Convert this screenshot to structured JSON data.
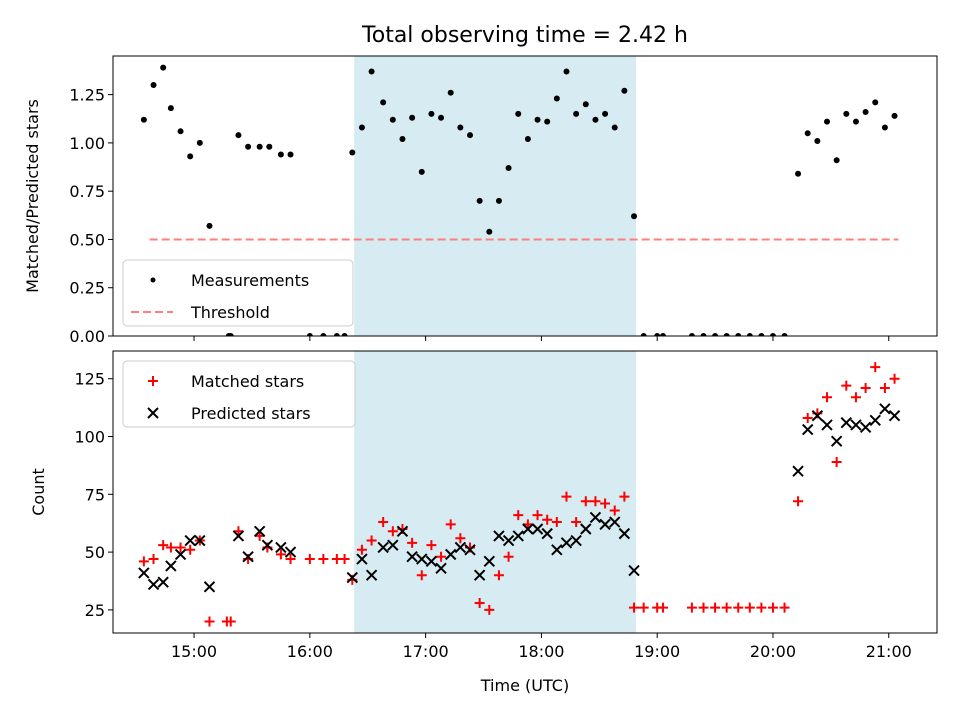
{
  "figure": {
    "title": "Total observing time = 2.42 h",
    "shaded_region": {
      "start": "16:23",
      "end": "18:49",
      "color": "#add8e6"
    }
  },
  "chart_data": [
    {
      "type": "scatter",
      "xlabel": "",
      "ylabel": "Matched/Predicted stars",
      "ylim": [
        0,
        1.45
      ],
      "xlim": [
        "14:18",
        "21:25"
      ],
      "yticks": [
        "0.00",
        "0.25",
        "0.50",
        "0.75",
        "1.00",
        "1.25"
      ],
      "xtick_labels_visible": false,
      "legend": {
        "position": "lower-left",
        "entries": [
          "Measurements",
          "Threshold"
        ]
      },
      "series": [
        {
          "name": "Measurements",
          "style": "dot",
          "color": "#000000",
          "points": [
            [
              "14:34",
              1.12
            ],
            [
              "14:39",
              1.3
            ],
            [
              "14:44",
              1.39
            ],
            [
              "14:48",
              1.18
            ],
            [
              "14:53",
              1.06
            ],
            [
              "14:58",
              0.93
            ],
            [
              "15:03",
              1.0
            ],
            [
              "15:08",
              0.57
            ],
            [
              "15:18",
              0.0
            ],
            [
              "15:19",
              0.0
            ],
            [
              "15:23",
              1.04
            ],
            [
              "15:28",
              0.98
            ],
            [
              "15:34",
              0.98
            ],
            [
              "15:39",
              0.98
            ],
            [
              "15:45",
              0.94
            ],
            [
              "15:50",
              0.94
            ],
            [
              "16:00",
              0.0
            ],
            [
              "16:07",
              0.0
            ],
            [
              "16:14",
              0.0
            ],
            [
              "16:18",
              0.0
            ],
            [
              "16:22",
              0.95
            ],
            [
              "16:27",
              1.08
            ],
            [
              "16:32",
              1.37
            ],
            [
              "16:38",
              1.21
            ],
            [
              "16:43",
              1.12
            ],
            [
              "16:48",
              1.02
            ],
            [
              "16:53",
              1.13
            ],
            [
              "16:58",
              0.85
            ],
            [
              "17:03",
              1.15
            ],
            [
              "17:08",
              1.13
            ],
            [
              "17:13",
              1.26
            ],
            [
              "17:18",
              1.08
            ],
            [
              "17:23",
              1.04
            ],
            [
              "17:28",
              0.7
            ],
            [
              "17:33",
              0.54
            ],
            [
              "17:38",
              0.7
            ],
            [
              "17:43",
              0.87
            ],
            [
              "17:48",
              1.15
            ],
            [
              "17:53",
              1.02
            ],
            [
              "17:58",
              1.12
            ],
            [
              "18:03",
              1.11
            ],
            [
              "18:08",
              1.23
            ],
            [
              "18:13",
              1.37
            ],
            [
              "18:18",
              1.15
            ],
            [
              "18:23",
              1.2
            ],
            [
              "18:28",
              1.12
            ],
            [
              "18:33",
              1.15
            ],
            [
              "18:38",
              1.08
            ],
            [
              "18:43",
              1.27
            ],
            [
              "18:48",
              0.62
            ],
            [
              "18:53",
              0.0
            ],
            [
              "19:00",
              0.0
            ],
            [
              "19:03",
              0.0
            ],
            [
              "19:18",
              0.0
            ],
            [
              "19:24",
              0.0
            ],
            [
              "19:30",
              0.0
            ],
            [
              "19:36",
              0.0
            ],
            [
              "19:42",
              0.0
            ],
            [
              "19:48",
              0.0
            ],
            [
              "19:54",
              0.0
            ],
            [
              "20:00",
              0.0
            ],
            [
              "20:06",
              0.0
            ],
            [
              "20:13",
              0.84
            ],
            [
              "20:18",
              1.05
            ],
            [
              "20:23",
              1.01
            ],
            [
              "20:28",
              1.11
            ],
            [
              "20:33",
              0.91
            ],
            [
              "20:38",
              1.15
            ],
            [
              "20:43",
              1.11
            ],
            [
              "20:48",
              1.16
            ],
            [
              "20:53",
              1.21
            ],
            [
              "20:58",
              1.08
            ],
            [
              "21:03",
              1.14
            ]
          ]
        },
        {
          "name": "Threshold",
          "style": "dashed-line",
          "color": "#ff7f7f",
          "points": [
            [
              "14:37",
              0.5
            ],
            [
              "21:05",
              0.5
            ]
          ]
        }
      ]
    },
    {
      "type": "scatter",
      "xlabel": "Time (UTC)",
      "ylabel": "Count",
      "ylim": [
        15,
        137
      ],
      "xlim": [
        "14:18",
        "21:25"
      ],
      "yticks": [
        "25",
        "50",
        "75",
        "100",
        "125"
      ],
      "xticks": [
        "15:00",
        "16:00",
        "17:00",
        "18:00",
        "19:00",
        "20:00",
        "21:00"
      ],
      "legend": {
        "position": "upper-left",
        "entries": [
          "Matched stars",
          "Predicted stars"
        ]
      },
      "series": [
        {
          "name": "Matched stars",
          "marker": "plus",
          "color": "#ff0000",
          "points": [
            [
              "14:34",
              46
            ],
            [
              "14:39",
              47
            ],
            [
              "14:44",
              53
            ],
            [
              "14:48",
              52
            ],
            [
              "14:53",
              52
            ],
            [
              "14:58",
              51
            ],
            [
              "15:03",
              55
            ],
            [
              "15:08",
              20
            ],
            [
              "15:17",
              20
            ],
            [
              "15:19",
              20
            ],
            [
              "15:23",
              59
            ],
            [
              "15:28",
              47
            ],
            [
              "15:34",
              57
            ],
            [
              "15:38",
              52
            ],
            [
              "15:45",
              49
            ],
            [
              "15:50",
              47
            ],
            [
              "16:00",
              47
            ],
            [
              "16:07",
              47
            ],
            [
              "16:14",
              47
            ],
            [
              "16:18",
              47
            ],
            [
              "16:22",
              38
            ],
            [
              "16:27",
              51
            ],
            [
              "16:32",
              55
            ],
            [
              "16:38",
              63
            ],
            [
              "16:43",
              59
            ],
            [
              "16:48",
              60
            ],
            [
              "16:53",
              54
            ],
            [
              "16:58",
              40
            ],
            [
              "17:03",
              53
            ],
            [
              "17:08",
              48
            ],
            [
              "17:13",
              62
            ],
            [
              "17:18",
              56
            ],
            [
              "17:23",
              52
            ],
            [
              "17:28",
              28
            ],
            [
              "17:33",
              25
            ],
            [
              "17:38",
              40
            ],
            [
              "17:43",
              48
            ],
            [
              "17:48",
              66
            ],
            [
              "17:53",
              62
            ],
            [
              "17:58",
              66
            ],
            [
              "18:03",
              64
            ],
            [
              "18:08",
              63
            ],
            [
              "18:13",
              74
            ],
            [
              "18:18",
              63
            ],
            [
              "18:23",
              72
            ],
            [
              "18:28",
              72
            ],
            [
              "18:33",
              71
            ],
            [
              "18:38",
              68
            ],
            [
              "18:43",
              74
            ],
            [
              "18:48",
              26
            ],
            [
              "18:53",
              26
            ],
            [
              "19:00",
              26
            ],
            [
              "19:03",
              26
            ],
            [
              "19:18",
              26
            ],
            [
              "19:24",
              26
            ],
            [
              "19:30",
              26
            ],
            [
              "19:36",
              26
            ],
            [
              "19:42",
              26
            ],
            [
              "19:48",
              26
            ],
            [
              "19:54",
              26
            ],
            [
              "20:00",
              26
            ],
            [
              "20:06",
              26
            ],
            [
              "20:13",
              72
            ],
            [
              "20:18",
              108
            ],
            [
              "20:23",
              110
            ],
            [
              "20:28",
              117
            ],
            [
              "20:33",
              89
            ],
            [
              "20:38",
              122
            ],
            [
              "20:43",
              117
            ],
            [
              "20:48",
              121
            ],
            [
              "20:53",
              130
            ],
            [
              "20:58",
              121
            ],
            [
              "21:03",
              125
            ]
          ]
        },
        {
          "name": "Predicted stars",
          "marker": "x",
          "color": "#000000",
          "points": [
            [
              "14:34",
              41
            ],
            [
              "14:39",
              36
            ],
            [
              "14:44",
              37
            ],
            [
              "14:48",
              44
            ],
            [
              "14:53",
              49
            ],
            [
              "14:58",
              55
            ],
            [
              "15:03",
              55
            ],
            [
              "15:08",
              35
            ],
            [
              "15:23",
              57
            ],
            [
              "15:28",
              48
            ],
            [
              "15:34",
              59
            ],
            [
              "15:38",
              53
            ],
            [
              "15:45",
              52
            ],
            [
              "15:50",
              50
            ],
            [
              "16:22",
              39
            ],
            [
              "16:27",
              47
            ],
            [
              "16:32",
              40
            ],
            [
              "16:38",
              52
            ],
            [
              "16:43",
              53
            ],
            [
              "16:48",
              59
            ],
            [
              "16:53",
              48
            ],
            [
              "16:58",
              47
            ],
            [
              "17:03",
              46
            ],
            [
              "17:08",
              43
            ],
            [
              "17:13",
              49
            ],
            [
              "17:18",
              52
            ],
            [
              "17:23",
              51
            ],
            [
              "17:28",
              40
            ],
            [
              "17:33",
              46
            ],
            [
              "17:38",
              57
            ],
            [
              "17:43",
              55
            ],
            [
              "17:48",
              57
            ],
            [
              "17:53",
              60
            ],
            [
              "17:58",
              60
            ],
            [
              "18:03",
              58
            ],
            [
              "18:08",
              51
            ],
            [
              "18:13",
              54
            ],
            [
              "18:18",
              55
            ],
            [
              "18:23",
              60
            ],
            [
              "18:28",
              65
            ],
            [
              "18:33",
              62
            ],
            [
              "18:38",
              63
            ],
            [
              "18:43",
              58
            ],
            [
              "18:48",
              42
            ],
            [
              "20:13",
              85
            ],
            [
              "20:18",
              103
            ],
            [
              "20:23",
              109
            ],
            [
              "20:28",
              105
            ],
            [
              "20:33",
              98
            ],
            [
              "20:38",
              106
            ],
            [
              "20:43",
              105
            ],
            [
              "20:48",
              104
            ],
            [
              "20:53",
              107
            ],
            [
              "20:58",
              112
            ],
            [
              "21:03",
              109
            ]
          ]
        }
      ]
    }
  ]
}
